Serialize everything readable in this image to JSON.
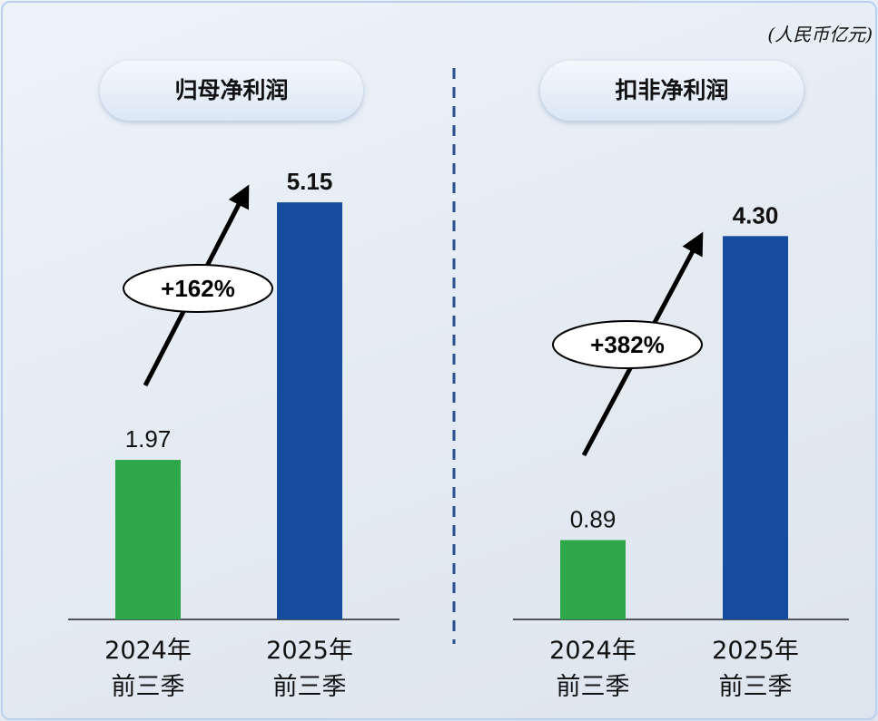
{
  "unit": "(人民币亿元)",
  "chart_data": [
    {
      "type": "bar",
      "title": "归母净利润",
      "categories": [
        "2024年\n前三季",
        "2025年\n前三季"
      ],
      "values": [
        1.97,
        5.15
      ],
      "value_labels": [
        "1.97",
        "5.15"
      ],
      "colors": [
        "#2ea64a",
        "#164c9e"
      ],
      "annotation": "+162%"
    },
    {
      "type": "bar",
      "title": "扣非净利润",
      "categories": [
        "2024年\n前三季",
        "2025年\n前三季"
      ],
      "values": [
        0.89,
        4.3
      ],
      "value_labels": [
        "0.89",
        "4.30"
      ],
      "colors": [
        "#2ea64a",
        "#164c9e"
      ],
      "annotation": "+382%"
    }
  ]
}
